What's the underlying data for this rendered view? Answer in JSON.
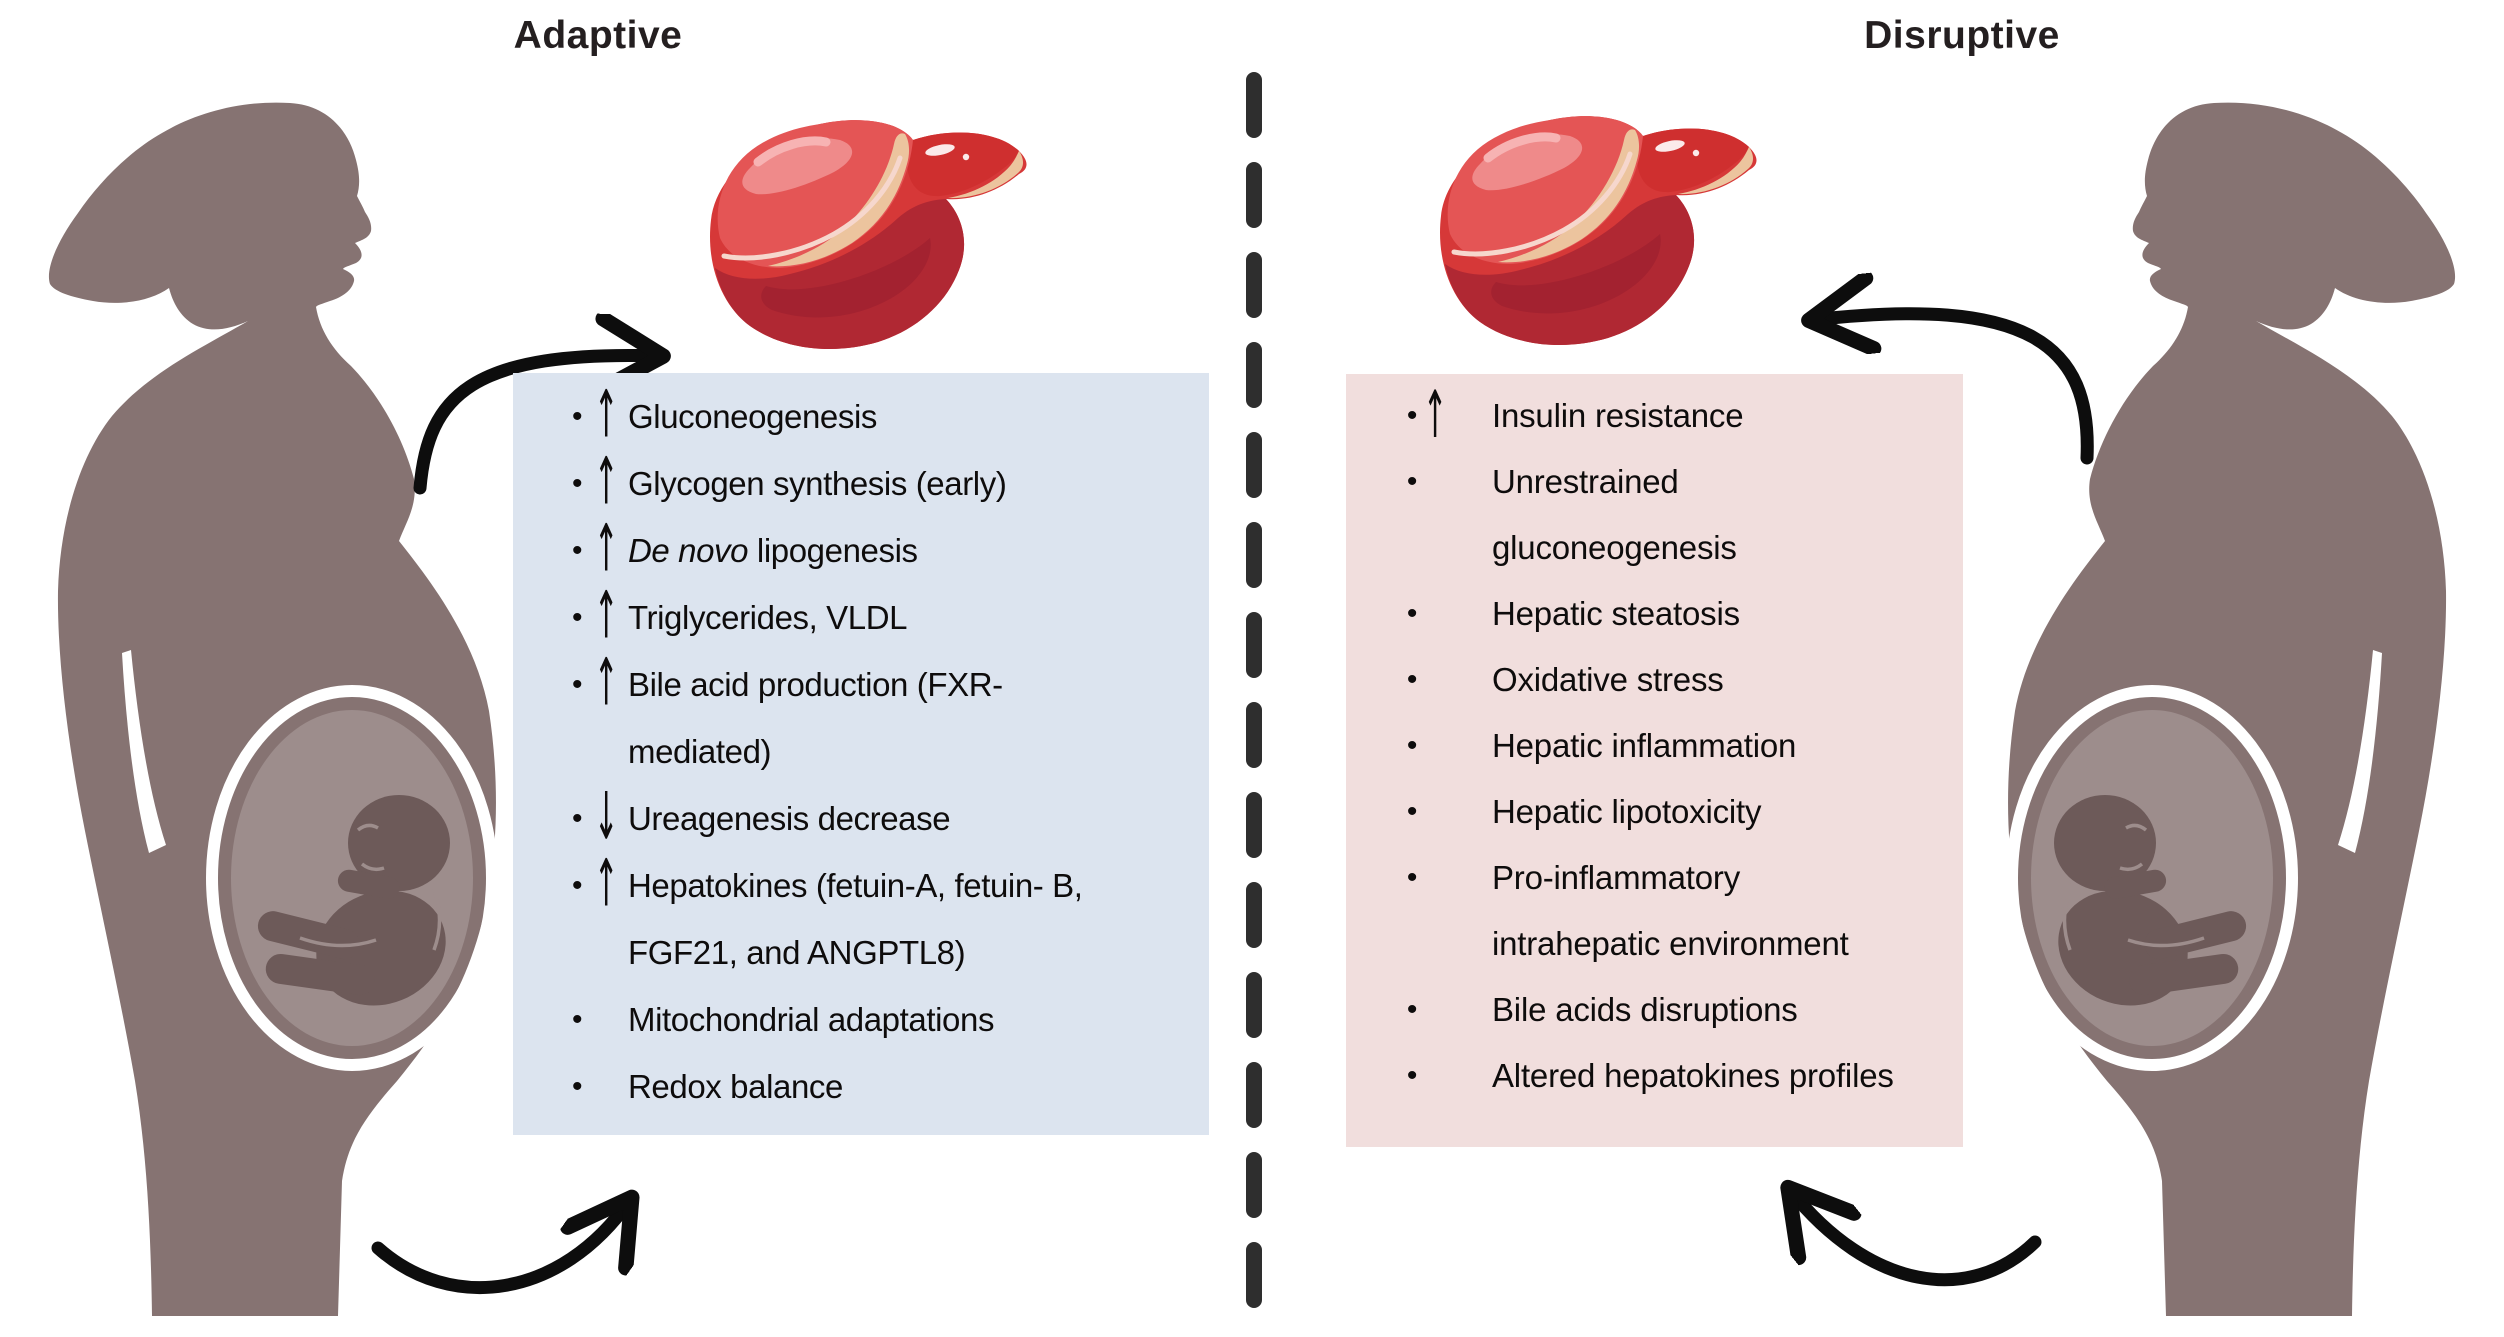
{
  "adaptive_panel": {
    "title": "Adaptive",
    "items": [
      {
        "arrow": "up",
        "lines": [
          "Gluconeogenesis"
        ]
      },
      {
        "arrow": "up",
        "lines": [
          "Glycogen synthesis (early)"
        ]
      },
      {
        "arrow": "up",
        "lines": [
          {
            "i": "De novo",
            "t": " lipogenesis"
          }
        ]
      },
      {
        "arrow": "up",
        "lines": [
          "Triglycerides, VLDL"
        ]
      },
      {
        "arrow": "up",
        "lines": [
          "Bile acid production (FXR-",
          "mediated)"
        ]
      },
      {
        "arrow": "down",
        "lines": [
          "Ureagenesis decrease"
        ]
      },
      {
        "arrow": "up",
        "lines": [
          "Hepatokines (fetuin-A, fetuin- B,",
          "FGF21, and ANGPTL8)"
        ]
      },
      {
        "arrow": "none",
        "lines": [
          "Mitochondrial adaptations"
        ]
      },
      {
        "arrow": "none",
        "lines": [
          "Redox balance"
        ]
      }
    ]
  },
  "disruptive_panel": {
    "title": "Disruptive",
    "items": [
      {
        "arrow": "up",
        "lines": [
          "Insulin resistance"
        ]
      },
      {
        "arrow": "none",
        "lines": [
          "Unrestrained",
          "gluconeogenesis"
        ]
      },
      {
        "arrow": "none",
        "lines": [
          "Hepatic steatosis"
        ]
      },
      {
        "arrow": "none",
        "lines": [
          "Oxidative stress"
        ]
      },
      {
        "arrow": "none",
        "lines": [
          "Hepatic inflammation"
        ]
      },
      {
        "arrow": "none",
        "lines": [
          "Hepatic lipotoxicity"
        ]
      },
      {
        "arrow": "none",
        "lines": [
          "Pro-inflammatory",
          "intrahepatic environment"
        ]
      },
      {
        "arrow": "none",
        "lines": [
          "Bile acids disruptions"
        ]
      },
      {
        "arrow": "none",
        "lines": [
          "Altered hepatokines profiles"
        ]
      }
    ]
  },
  "glyphs": {
    "bullet": "•",
    "up_arrow": "↑",
    "down_arrow": "↓"
  },
  "colors": {
    "background": "#ffffff",
    "title_text": "#241f20",
    "text": "#0e0c0c",
    "adaptive_box": "#dce4ef",
    "disruptive_box": "#f1dedd",
    "silhouette": "#867372",
    "womb": "#9d8d8c",
    "fetus": "#6d5a59",
    "belly_ring": "#ffffff",
    "divider": "#2e2e2e",
    "arrow_black": "#0d0d0d",
    "liver_red": "#d63838",
    "liver_left_lobe": "#e45555",
    "liver_highlight": "#ef8a8a",
    "liver_highlight_bright": "#f7b3b3",
    "liver_right_lobe": "#cf2f2f",
    "liver_dark": "#b02833",
    "liver_darker": "#a32230",
    "liver_crevice": "#ecc49e",
    "liver_rim": "#f6d7cd"
  }
}
